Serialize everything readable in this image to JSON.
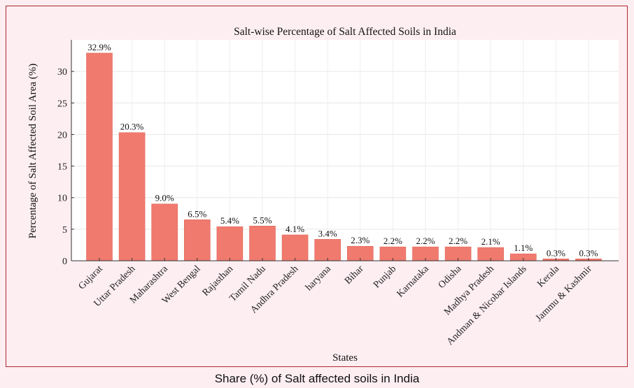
{
  "caption": "Share (%) of Salt affected soils in India",
  "chart_data": {
    "type": "bar",
    "title": "Salt-wise Percentage of Salt Affected Soils in India",
    "xlabel": "States",
    "ylabel": "Percentage of Salt Affected Soil Area (%)",
    "ylim": [
      0,
      35
    ],
    "yticks": [
      0,
      5,
      10,
      15,
      20,
      25,
      30
    ],
    "grid": true,
    "categories": [
      "Gujarat",
      "Uttar Pradesh",
      "Maharashtra",
      "West Bengal",
      "Rajasthan",
      "Tamil Nadu",
      "Andhra Pradesh",
      "haryana",
      "Bihar",
      "Punjab",
      "Karnataka",
      "Odisha",
      "Madhya Pradesh",
      "Andman & Nicobar Islands",
      "Kerala",
      "Jammu & Kashmir"
    ],
    "values": [
      32.9,
      20.3,
      9.0,
      6.5,
      5.4,
      5.5,
      4.1,
      3.4,
      2.3,
      2.2,
      2.2,
      2.2,
      2.1,
      1.1,
      0.3,
      0.3
    ],
    "data_labels": [
      "32.9%",
      "20.3%",
      "9.0%",
      "6.5%",
      "5.4%",
      "5.5%",
      "4.1%",
      "3.4%",
      "2.3%",
      "2.2%",
      "2.2%",
      "2.2%",
      "2.1%",
      "1.1%",
      "0.3%",
      "0.3%"
    ],
    "bar_color": "#f07a6e",
    "bar_edge_color": "#e0675b"
  }
}
